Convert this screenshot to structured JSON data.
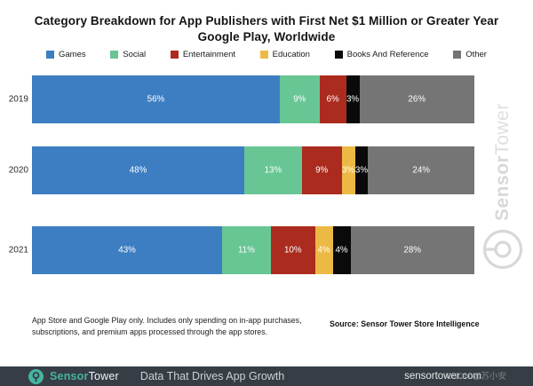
{
  "title": {
    "line1": "Category Breakdown for App Publishers with First Net $1 Million or Greater Year",
    "line2": "Google Play, Worldwide"
  },
  "chart_data": {
    "type": "bar",
    "orientation": "horizontal",
    "stacked": true,
    "title": "Category Breakdown for App Publishers with First Net $1 Million or Greater Year",
    "subtitle": "Google Play, Worldwide",
    "categories": [
      "2019",
      "2020",
      "2021"
    ],
    "series": [
      {
        "name": "Games",
        "color": "#3d7ec2",
        "values": [
          56,
          48,
          43
        ]
      },
      {
        "name": "Social",
        "color": "#67c694",
        "values": [
          9,
          13,
          11
        ]
      },
      {
        "name": "Entertainment",
        "color": "#ab2b1e",
        "values": [
          6,
          9,
          10
        ]
      },
      {
        "name": "Education",
        "color": "#ecb944",
        "values": [
          0,
          3,
          4
        ]
      },
      {
        "name": "Books And Reference",
        "color": "#0a0a0a",
        "values": [
          3,
          3,
          4
        ]
      },
      {
        "name": "Other",
        "color": "#757575",
        "values": [
          26,
          24,
          28
        ]
      }
    ],
    "value_format": "percent",
    "xlim": [
      0,
      100
    ],
    "grid": false,
    "legend_position": "top",
    "value_labels": "inside-white"
  },
  "footnote": "App Store and Google Play only. Includes only spending on in-app purchases, subscriptions, and premium apps processed through the app stores.",
  "source": "Source: Sensor Tower Store Intelligence",
  "vertical_watermark": {
    "bold": "Sensor",
    "light": "Tower"
  },
  "footer": {
    "brand_sensor": "Sensor",
    "brand_tower": "Tower",
    "tagline": "Data That Drives App Growth",
    "website": "sensortower.com",
    "overlay_watermark": "CSDN @苏小安"
  },
  "colors": {
    "footer_bar": "#363d44",
    "brand_teal": "#45b4a0",
    "watermark_gray": "#d8d8d8",
    "title_text": "#141414"
  }
}
